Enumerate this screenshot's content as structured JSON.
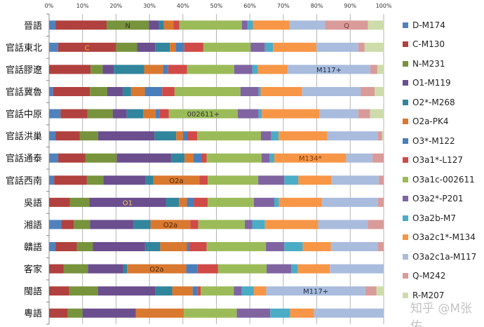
{
  "chart_data": {
    "type": "bar",
    "orientation": "horizontal",
    "stacked": "percent",
    "title": "",
    "xlabel": "",
    "ylabel": "",
    "xlim": [
      0,
      100
    ],
    "x_ticks": [
      "0%",
      "10%",
      "20%",
      "30%",
      "40%",
      "50%",
      "60%",
      "70%",
      "80%",
      "90%",
      "100%"
    ],
    "grid": "vertical",
    "legend_position": "right",
    "categories": [
      "晉語",
      "官話東北",
      "官話膠遼",
      "官話冀魯",
      "官話中原",
      "官話洪巢",
      "官話通泰",
      "官話西南",
      "吳語",
      "湘語",
      "贛語",
      "客家",
      "閩語",
      "粵語"
    ],
    "series": [
      {
        "name": "D-M174",
        "color": "#4F81BD",
        "values": [
          1.9,
          2.7,
          0,
          1.2,
          3.4,
          1.9,
          2.7,
          1.5,
          0,
          3.6,
          1.9,
          0,
          0,
          0
        ]
      },
      {
        "name": "C-M130",
        "color": "#B0413E",
        "values": [
          15.3,
          17.3,
          12.4,
          11.0,
          8.1,
          7.3,
          8.1,
          9.8,
          6.2,
          3.8,
          6.4,
          4.3,
          6.0,
          5.6
        ]
      },
      {
        "name": "N-M231",
        "color": "#77933C",
        "values": [
          12.6,
          6.3,
          3.6,
          5.2,
          7.5,
          5.4,
          9.4,
          4.9,
          5.8,
          4.8,
          4.8,
          7.3,
          8.6,
          4.4
        ]
      },
      {
        "name": "O1-M119",
        "color": "#6B4E8E",
        "values": [
          3.0,
          5.4,
          3.3,
          4.6,
          4.2,
          16.9,
          16.3,
          12.6,
          22.9,
          13.1,
          15.6,
          10.6,
          17.2,
          15.9
        ]
      },
      {
        "name": "O2*-M268",
        "color": "#31859C",
        "values": [
          1.5,
          4.4,
          9.1,
          2.5,
          4.9,
          6.5,
          4.0,
          2.4,
          3.9,
          5.0,
          4.5,
          1.1,
          5.0,
          0
        ]
      },
      {
        "name": "O2a-PK4",
        "color": "#D9782F",
        "values": [
          2.9,
          1.7,
          5.6,
          4.1,
          3.7,
          2.0,
          2.6,
          13.7,
          2.4,
          11.9,
          8.0,
          17.7,
          6.1,
          14.4
        ]
      },
      {
        "name": "O3*-M122",
        "color": "#4A7EBB",
        "values": [
          0,
          2.6,
          1.6,
          5.2,
          1.2,
          1.3,
          2.4,
          0,
          2.1,
          0,
          0.6,
          3.3,
          1.4,
          0
        ]
      },
      {
        "name": "O3a1*-L127",
        "color": "#D04A48",
        "values": [
          1.7,
          5.7,
          5.6,
          3.7,
          2.8,
          3.0,
          1.6,
          2.5,
          4.1,
          2.4,
          5.3,
          6.2,
          1.0,
          0
        ]
      },
      {
        "name": "O3a1c-002611",
        "color": "#9BBB59",
        "values": [
          18.7,
          14.1,
          14.1,
          19.7,
          20.6,
          19.0,
          16.4,
          15.1,
          13.8,
          13.9,
          17.7,
          14.5,
          9.9,
          15.8
        ]
      },
      {
        "name": "O3a2*-P201",
        "color": "#8064A2",
        "values": [
          1.7,
          4.3,
          5.4,
          5.4,
          6.2,
          3.1,
          2.4,
          7.8,
          6.1,
          2.2,
          5.5,
          7.4,
          2.4,
          10.0
        ]
      },
      {
        "name": "O3a2b-M7",
        "color": "#4BACC6",
        "values": [
          1.6,
          2.4,
          1.7,
          0.6,
          1.0,
          2.2,
          1.4,
          4.2,
          1.4,
          3.8,
          5.5,
          1.9,
          3.6,
          5.9
        ]
      },
      {
        "name": "O3a2c1*-M134",
        "color": "#F79646",
        "values": [
          10.9,
          13.0,
          8.9,
          12.4,
          17.2,
          14.6,
          21.5,
          9.9,
          12.9,
          15.9,
          8.4,
          9.6,
          3.7,
          7.2
        ]
      },
      {
        "name": "O3a2c1a-M117",
        "color": "#A9BCDD",
        "values": [
          10.7,
          12.5,
          24.7,
          17.5,
          11.6,
          15.1,
          7.8,
          14.1,
          16.7,
          14.8,
          14.0,
          16.1,
          29.6,
          20.8
        ]
      },
      {
        "name": "Q-M242",
        "color": "#D99B9A",
        "values": [
          12.8,
          1.9,
          2.1,
          4.2,
          3.5,
          1.2,
          3.4,
          1.5,
          1.7,
          4.8,
          1.8,
          0,
          3.3,
          0
        ]
      },
      {
        "name": "R-M207",
        "color": "#CDDCAA",
        "values": [
          4.7,
          5.7,
          1.9,
          2.7,
          4.1,
          0.5,
          0,
          0,
          0,
          0,
          0,
          0,
          2.2,
          0
        ]
      }
    ],
    "annotations": [
      {
        "category": "晉語",
        "series": "N-M231",
        "text": "N",
        "color": "#333333"
      },
      {
        "category": "晉語",
        "series": "Q-M242",
        "text": "Q",
        "color": "#7a3a3a"
      },
      {
        "category": "官話東北",
        "series": "C-M130",
        "text": "C",
        "color": "#F7B030"
      },
      {
        "category": "官話膠遼",
        "series": "O3a2c1a-M117",
        "text": "M117+",
        "color": "#1f2a44"
      },
      {
        "category": "官話中原",
        "series": "O3a1c-002611",
        "text": "002611+",
        "color": "#333333"
      },
      {
        "category": "官話通泰",
        "series": "O3a2c1*-M134",
        "text": "M134*",
        "color": "#7a3a10"
      },
      {
        "category": "官話西南",
        "series": "O2a-PK4",
        "text": "O2a",
        "color": "#4a2a10"
      },
      {
        "category": "吳語",
        "series": "O1-M119",
        "text": "O1",
        "color": "#F0D040"
      },
      {
        "category": "湘語",
        "series": "O2a-PK4",
        "text": "O2a",
        "color": "#4a2a10"
      },
      {
        "category": "客家",
        "series": "O2a-PK4",
        "text": "O2a",
        "color": "#4a2a10"
      },
      {
        "category": "閩語",
        "series": "O3a2c1a-M117",
        "text": "M117+",
        "color": "#1f2a44"
      }
    ]
  },
  "watermark": "知乎 @M张佑"
}
